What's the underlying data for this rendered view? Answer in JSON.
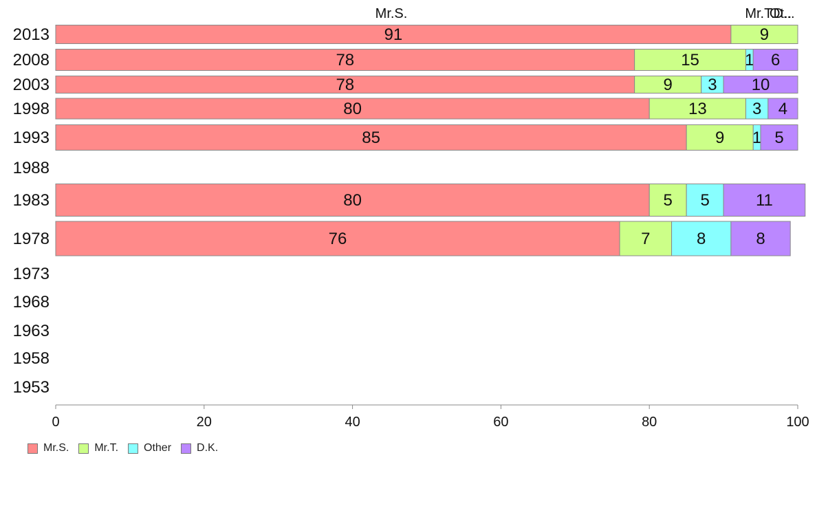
{
  "chart_data": {
    "type": "bar",
    "orientation": "horizontal",
    "stacked": true,
    "categories": [
      "2013",
      "2008",
      "2003",
      "1998",
      "1993",
      "1988",
      "1983",
      "1978",
      "1973",
      "1968",
      "1963",
      "1958",
      "1953"
    ],
    "series": [
      {
        "name": "Mr.S.",
        "color": "#ff8a8a",
        "values": [
          91,
          78,
          78,
          80,
          85,
          null,
          80,
          76,
          null,
          null,
          null,
          null,
          null
        ]
      },
      {
        "name": "Mr.T.",
        "color": "#ccff88",
        "values": [
          9,
          15,
          9,
          13,
          9,
          null,
          5,
          7,
          null,
          null,
          null,
          null,
          null
        ]
      },
      {
        "name": "Other",
        "color": "#88ffff",
        "values": [
          0,
          1,
          3,
          3,
          1,
          null,
          5,
          8,
          null,
          null,
          null,
          null,
          null
        ]
      },
      {
        "name": "D.K.",
        "color": "#bb88ff",
        "values": [
          0,
          6,
          10,
          4,
          5,
          null,
          11,
          8,
          null,
          null,
          null,
          null,
          null
        ]
      }
    ],
    "segment_labels": [
      [
        "91",
        "9",
        "",
        ""
      ],
      [
        "78",
        "15",
        "1",
        "6"
      ],
      [
        "78",
        "9",
        "3",
        "10"
      ],
      [
        "80",
        "13",
        "3",
        "4"
      ],
      [
        "85",
        "9",
        "1",
        "5"
      ],
      [
        "",
        "",
        "",
        ""
      ],
      [
        "80",
        "5",
        "5",
        "11"
      ],
      [
        "76",
        "7",
        "8",
        "8"
      ],
      [
        "",
        "",
        "",
        ""
      ],
      [
        "",
        "",
        "",
        ""
      ],
      [
        "",
        "",
        "",
        ""
      ],
      [
        "",
        "",
        "",
        ""
      ],
      [
        "",
        "",
        "",
        ""
      ]
    ],
    "top_labels": [
      "Mr.S.",
      "Mr.T.",
      "Ot..",
      "D..."
    ],
    "xlim": [
      0,
      100
    ],
    "xticks": [
      "0",
      "20",
      "40",
      "60",
      "80",
      "100"
    ],
    "legend": "bottom-left"
  }
}
